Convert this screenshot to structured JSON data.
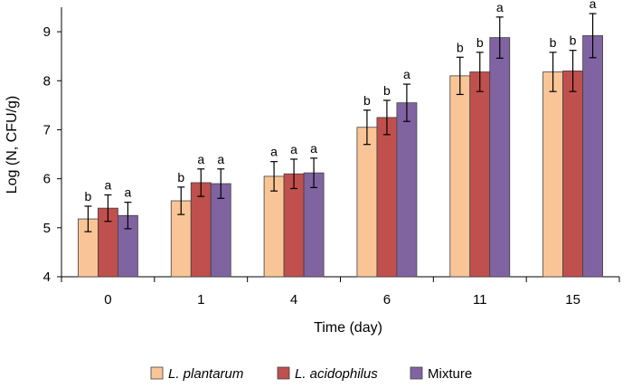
{
  "chart_data": {
    "type": "bar",
    "title": "",
    "xlabel": "Time (day)",
    "ylabel": "Log (N, CFU/g)",
    "ylim": [
      4,
      9.5
    ],
    "yticks": [
      4,
      5,
      6,
      7,
      8,
      9
    ],
    "categories": [
      "0",
      "1",
      "4",
      "6",
      "11",
      "15"
    ],
    "series": [
      {
        "name": "L. plantarum",
        "italic": true,
        "color": "#F9C597",
        "values": [
          5.18,
          5.55,
          6.05,
          7.05,
          8.1,
          8.18
        ],
        "errors": [
          0.26,
          0.28,
          0.3,
          0.35,
          0.38,
          0.4
        ],
        "labels": [
          "b",
          "b",
          "a",
          "b",
          "b",
          "b"
        ]
      },
      {
        "name": "L. acidophilus",
        "italic": true,
        "color": "#C0504D",
        "values": [
          5.4,
          5.92,
          6.1,
          7.25,
          8.18,
          8.2
        ],
        "errors": [
          0.27,
          0.28,
          0.3,
          0.35,
          0.4,
          0.42
        ],
        "labels": [
          "a",
          "a",
          "a",
          "b",
          "b",
          "b"
        ]
      },
      {
        "name": "Mixture",
        "italic": false,
        "color": "#8064A2",
        "values": [
          5.25,
          5.9,
          6.12,
          7.55,
          8.88,
          8.92
        ],
        "errors": [
          0.27,
          0.3,
          0.3,
          0.38,
          0.42,
          0.45
        ],
        "labels": [
          "a",
          "a",
          "a",
          "a",
          "a",
          "a"
        ]
      }
    ],
    "legend_position": "bottom"
  }
}
